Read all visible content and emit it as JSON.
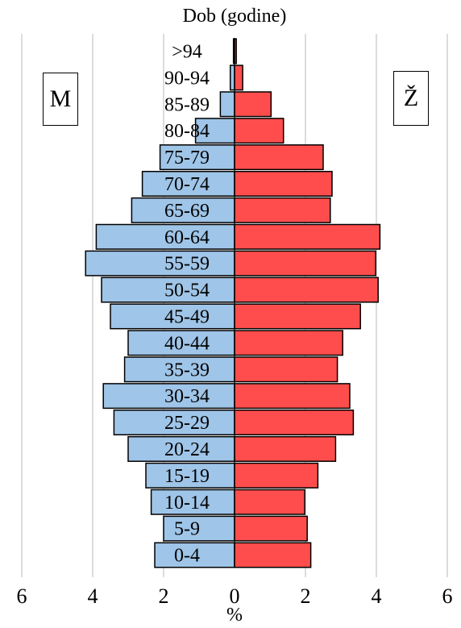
{
  "chart_data": {
    "type": "bar",
    "title": "Dob (godine)",
    "xlabel": "%",
    "ylabel": "",
    "legend": {
      "left": "M",
      "right": "Ž"
    },
    "x_ticks": [
      "6",
      "4",
      "2",
      "0",
      "2",
      "4",
      "6"
    ],
    "xlim": [
      -6,
      6
    ],
    "grid": true,
    "categories": [
      "0-4",
      "5-9",
      "10-14",
      "15-19",
      "20-24",
      "25-29",
      "30-34",
      "35-39",
      "40-44",
      "45-49",
      "50-54",
      "55-59",
      "60-64",
      "65-69",
      "70-74",
      "75-79",
      "80-84",
      "85-89",
      "90-94",
      ">94"
    ],
    "series": [
      {
        "name": "M",
        "color": "#9fc5e8",
        "values": [
          2.25,
          2.0,
          2.35,
          2.5,
          3.0,
          3.4,
          3.7,
          3.1,
          3.0,
          3.5,
          3.75,
          4.2,
          3.9,
          2.9,
          2.6,
          2.1,
          1.1,
          0.4,
          0.12,
          0.03
        ]
      },
      {
        "name": "Ž",
        "color": "#ff4d4d",
        "values": [
          2.15,
          2.05,
          1.98,
          2.35,
          2.85,
          3.35,
          3.25,
          2.9,
          3.05,
          3.55,
          4.05,
          3.98,
          4.1,
          2.7,
          2.75,
          2.5,
          1.38,
          1.03,
          0.23,
          0.05
        ]
      }
    ]
  }
}
